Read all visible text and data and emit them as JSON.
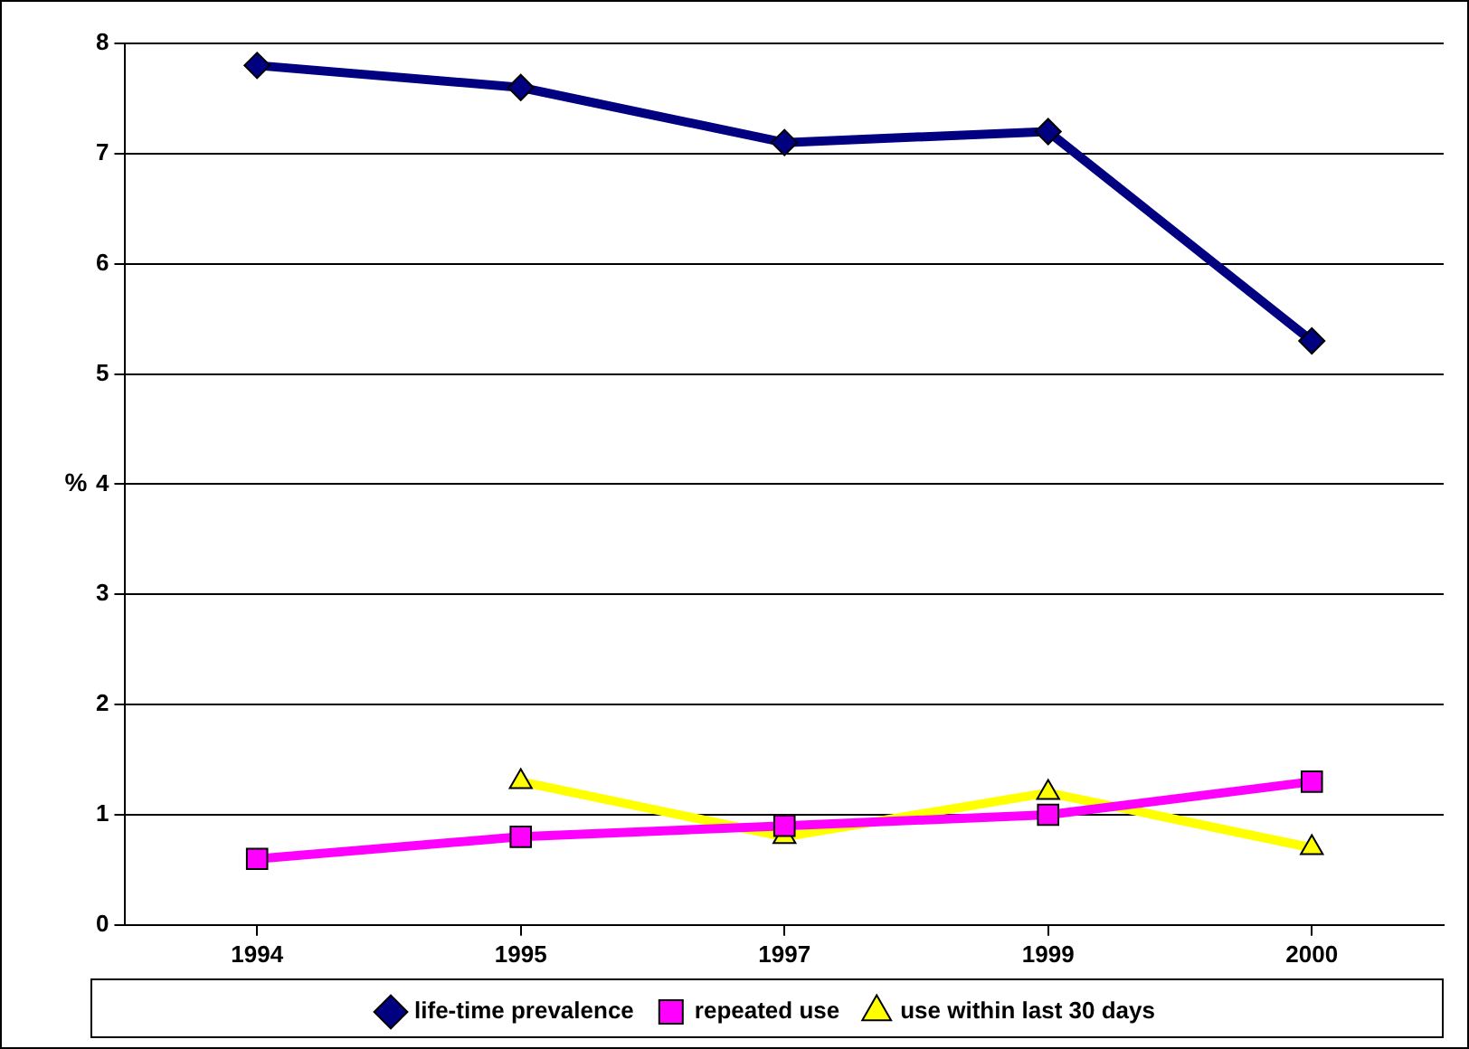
{
  "chart_data": {
    "type": "line",
    "ylabel": "%",
    "categories": [
      "1994",
      "1995",
      "1997",
      "1999",
      "2000"
    ],
    "series": [
      {
        "name": "life-time prevalence",
        "color": "#000080",
        "marker": "diamond",
        "values": [
          7.8,
          7.6,
          7.1,
          7.2,
          5.3
        ]
      },
      {
        "name": "repeated use",
        "color": "#ff00ff",
        "marker": "square",
        "values": [
          0.6,
          0.8,
          0.9,
          1.0,
          1.3
        ]
      },
      {
        "name": "use within last 30 days",
        "color": "#ffff00",
        "marker": "triangle",
        "values": [
          null,
          1.3,
          0.8,
          1.2,
          0.7
        ]
      }
    ],
    "ylim": [
      0,
      8
    ],
    "yticks": [
      0,
      1,
      2,
      3,
      4,
      5,
      6,
      7,
      8
    ],
    "grid": "y",
    "legend": "bottom",
    "line_style": "solid"
  }
}
